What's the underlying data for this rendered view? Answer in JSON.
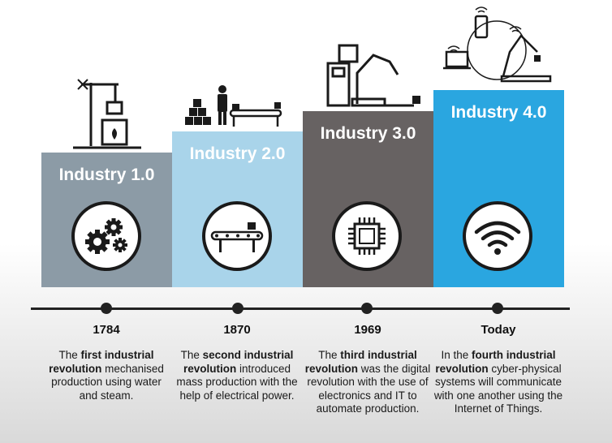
{
  "colors": {
    "stage1": "#8c9ba6",
    "stage2": "#a9d4ea",
    "stage3": "#676262",
    "stage4": "#2aa6e0",
    "timeline": "#222222"
  },
  "stages": [
    {
      "title": "Industry 1.0",
      "icon": "gears-icon",
      "year": "1784",
      "desc_pre": "The ",
      "desc_bold": "first industrial revolution",
      "desc_post": " mechanised production using water and steam."
    },
    {
      "title": "Industry 2.0",
      "icon": "conveyor-belt-icon",
      "year": "1870",
      "desc_pre": "The ",
      "desc_bold": "second industrial revolution",
      "desc_post": " introduced mass production with the help of electrical power."
    },
    {
      "title": "Industry 3.0",
      "icon": "microchip-icon",
      "year": "1969",
      "desc_pre": "The ",
      "desc_bold": "third industrial revolution",
      "desc_post": " was the digital revolution with the use of electronics and IT to automate production."
    },
    {
      "title": "Industry 4.0",
      "icon": "wifi-icon",
      "year": "Today",
      "desc_pre": "In the ",
      "desc_bold": "fourth industrial revolution",
      "desc_post": " cyber-physical systems will communicate with one another using the Internet of Things."
    }
  ]
}
